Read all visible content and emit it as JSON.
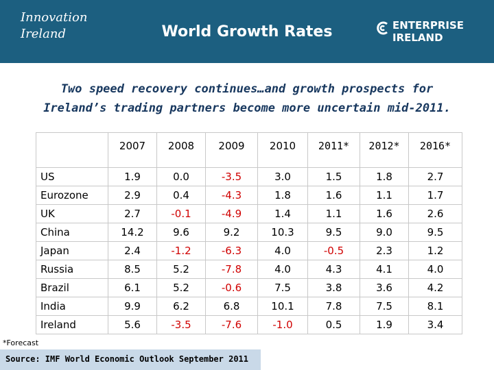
{
  "header": {
    "title": "World Growth Rates",
    "logo_left": "Innovation Ireland",
    "logo_right": "ENTERPRISE IRELAND"
  },
  "subtitle": [
    "Two speed recovery continues…and growth prospects for",
    "Ireland’s trading partners become more uncertain mid-2011."
  ],
  "table": {
    "columns": [
      "",
      "2007",
      "2008",
      "2009",
      "2010",
      "2011*",
      "2012*",
      "2016*"
    ],
    "rows": [
      [
        "US",
        "1.9",
        "0.0",
        "-3.5",
        "3.0",
        "1.5",
        "1.8",
        "2.7"
      ],
      [
        "Eurozone",
        "2.9",
        "0.4",
        "-4.3",
        "1.8",
        "1.6",
        "1.1",
        "1.7"
      ],
      [
        "UK",
        "2.7",
        "-0.1",
        "-4.9",
        "1.4",
        "1.1",
        "1.6",
        "2.6"
      ],
      [
        "China",
        "14.2",
        "9.6",
        "9.2",
        "10.3",
        "9.5",
        "9.0",
        "9.5"
      ],
      [
        "Japan",
        "2.4",
        "-1.2",
        "-6.3",
        "4.0",
        "-0.5",
        "2.3",
        "1.2"
      ],
      [
        "Russia",
        "8.5",
        "5.2",
        "-7.8",
        "4.0",
        "4.3",
        "4.1",
        "4.0"
      ],
      [
        "Brazil",
        "6.1",
        "5.2",
        "-0.6",
        "7.5",
        "3.8",
        "3.6",
        "4.2"
      ],
      [
        "India",
        "9.9",
        "6.2",
        "6.8",
        "10.1",
        "7.8",
        "7.5",
        "8.1"
      ],
      [
        "Ireland",
        "5.6",
        "-3.5",
        "-7.6",
        "-1.0",
        "0.5",
        "1.9",
        "3.4"
      ]
    ]
  },
  "footnote": "*Forecast",
  "source": "Source: IMF World Economic Outlook September 2011"
}
